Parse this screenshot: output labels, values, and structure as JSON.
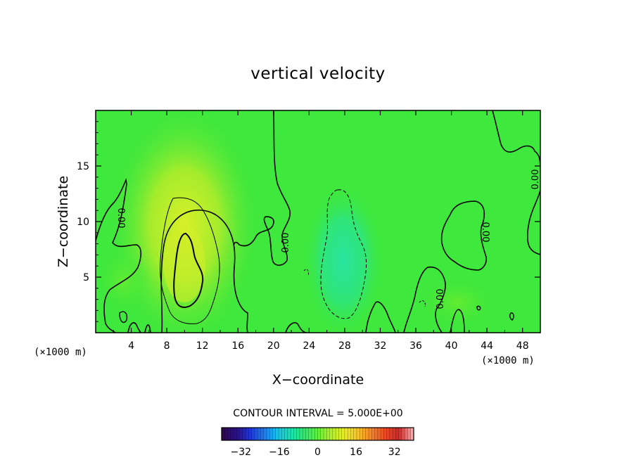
{
  "chart_data": {
    "type": "heatmap",
    "title": "vertical velocity",
    "xlabel": "X−coordinate",
    "ylabel": "Z−coordinate",
    "x_unit": "(×1000 m)",
    "x_unit_right": "(×1000 m)",
    "xlim": [
      0,
      50
    ],
    "ylim": [
      0,
      20
    ],
    "xticks": [
      4,
      8,
      12,
      16,
      20,
      24,
      28,
      32,
      36,
      40,
      44,
      48
    ],
    "yticks": [
      5,
      10,
      15
    ],
    "contour_interval_text": "CONTOUR INTERVAL = 5.000E+00",
    "contour_interval": 5.0,
    "colorbar": {
      "range": [
        -40,
        40
      ],
      "ticks": [
        -32,
        -16,
        0,
        16,
        32
      ],
      "tick_labels": [
        "−32",
        "−16",
        "0",
        "16",
        "32"
      ],
      "colors": [
        "#2d0a4a",
        "#2a0f8c",
        "#1f35d6",
        "#1d78f0",
        "#18c0ea",
        "#1ae0b0",
        "#2ee870",
        "#60f03c",
        "#b2f02a",
        "#eaec2a",
        "#f6c028",
        "#f48226",
        "#ea4a26",
        "#d02626",
        "#f0a8a8"
      ]
    },
    "field_extremes": {
      "max_updraft": {
        "x": 10,
        "z": 6,
        "value": 12
      },
      "max_downdraft": {
        "x": 27,
        "z": 6,
        "value": -6
      }
    },
    "contour_labels": [
      "0.00",
      "0.00",
      "0.00",
      "0.00",
      "0.00"
    ]
  }
}
